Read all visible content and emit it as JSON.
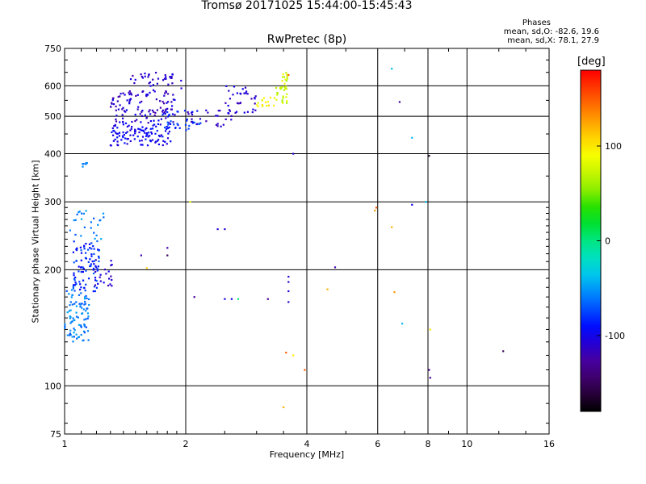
{
  "title": "Tromsø 20171025 15:44:00-15:45:43",
  "subtitle": "RwPretec (8p)",
  "phase_info": {
    "heading": "Phases",
    "line_o": "mean, sd,O: -82.6, 19.6",
    "line_x": "mean, sd,X:  78.1, 27.9"
  },
  "colorbar": {
    "unit": "[deg]",
    "ticks": [
      100,
      0,
      -100
    ],
    "range": [
      -180,
      180
    ]
  },
  "chart_data": {
    "type": "scatter",
    "xlabel": "Frequency [MHz]",
    "ylabel": "Stationary phase Virtual Height [km]",
    "xscale": "log",
    "yscale": "log",
    "xlim": [
      1,
      16
    ],
    "ylim": [
      75,
      750
    ],
    "xticks": [
      1,
      2,
      4,
      6,
      8,
      10,
      16
    ],
    "yticks": [
      75,
      100,
      200,
      300,
      400,
      500,
      600,
      750
    ],
    "grid": true,
    "colorbar_label": "[deg]",
    "point_clusters": [
      {
        "x_range": [
          1.0,
          1.15
        ],
        "y_range": [
          130,
          180
        ],
        "n": 90,
        "phase_range": [
          -75,
          -45
        ]
      },
      {
        "x_range": [
          1.05,
          1.22
        ],
        "y_range": [
          175,
          240
        ],
        "n": 90,
        "phase_range": [
          -100,
          -65
        ]
      },
      {
        "x_range": [
          1.03,
          1.25
        ],
        "y_range": [
          240,
          285
        ],
        "n": 25,
        "phase_range": [
          -75,
          -45
        ]
      },
      {
        "x_range": [
          1.18,
          1.32
        ],
        "y_range": [
          180,
          215
        ],
        "n": 20,
        "phase_range": [
          -125,
          -100
        ]
      },
      {
        "x_range": [
          1.1,
          1.14
        ],
        "y_range": [
          370,
          380
        ],
        "n": 6,
        "phase_range": [
          -65,
          -55
        ]
      },
      {
        "x_range": [
          1.3,
          1.85
        ],
        "y_range": [
          420,
          480
        ],
        "n": 110,
        "phase_range": [
          -110,
          -85
        ]
      },
      {
        "x_range": [
          1.3,
          1.9
        ],
        "y_range": [
          480,
          580
        ],
        "n": 110,
        "phase_range": [
          -125,
          -95
        ]
      },
      {
        "x_range": [
          1.45,
          1.95
        ],
        "y_range": [
          580,
          650
        ],
        "n": 40,
        "phase_range": [
          -120,
          -100
        ]
      },
      {
        "x_range": [
          1.75,
          2.2
        ],
        "y_range": [
          460,
          520
        ],
        "n": 35,
        "phase_range": [
          -90,
          -70
        ]
      },
      {
        "x_range": [
          2.0,
          2.6
        ],
        "y_range": [
          470,
          520
        ],
        "n": 25,
        "phase_range": [
          -120,
          -105
        ]
      },
      {
        "x_range": [
          2.5,
          3.0
        ],
        "y_range": [
          510,
          600
        ],
        "n": 35,
        "phase_range": [
          -120,
          -95
        ]
      },
      {
        "x_range": [
          3.0,
          3.35
        ],
        "y_range": [
          525,
          560
        ],
        "n": 15,
        "phase_range": [
          80,
          110
        ]
      },
      {
        "x_range": [
          3.35,
          3.6
        ],
        "y_range": [
          540,
          650
        ],
        "n": 35,
        "phase_range": [
          55,
          95
        ]
      }
    ],
    "points": [
      {
        "x": 2.05,
        "y": 300,
        "phase": 90
      },
      {
        "x": 2.1,
        "y": 170,
        "phase": -130
      },
      {
        "x": 2.4,
        "y": 255,
        "phase": -110
      },
      {
        "x": 2.5,
        "y": 255,
        "phase": -110
      },
      {
        "x": 2.5,
        "y": 168,
        "phase": -100
      },
      {
        "x": 2.6,
        "y": 168,
        "phase": -100
      },
      {
        "x": 2.7,
        "y": 168,
        "phase": 0
      },
      {
        "x": 1.8,
        "y": 228,
        "phase": -120
      },
      {
        "x": 1.8,
        "y": 218,
        "phase": -150
      },
      {
        "x": 1.55,
        "y": 218,
        "phase": -120
      },
      {
        "x": 3.2,
        "y": 168,
        "phase": -130
      },
      {
        "x": 3.6,
        "y": 192,
        "phase": -110
      },
      {
        "x": 3.6,
        "y": 186,
        "phase": -110
      },
      {
        "x": 3.6,
        "y": 176,
        "phase": -110
      },
      {
        "x": 3.6,
        "y": 165,
        "phase": -110
      },
      {
        "x": 3.7,
        "y": 400,
        "phase": -110
      },
      {
        "x": 3.5,
        "y": 88,
        "phase": 120
      },
      {
        "x": 3.55,
        "y": 122,
        "phase": 150
      },
      {
        "x": 3.7,
        "y": 120,
        "phase": 100
      },
      {
        "x": 3.95,
        "y": 110,
        "phase": 150
      },
      {
        "x": 4.5,
        "y": 178,
        "phase": 120
      },
      {
        "x": 4.7,
        "y": 203,
        "phase": -120
      },
      {
        "x": 5.9,
        "y": 285,
        "phase": 130
      },
      {
        "x": 5.95,
        "y": 290,
        "phase": 150
      },
      {
        "x": 6.5,
        "y": 665,
        "phase": -40
      },
      {
        "x": 6.5,
        "y": 258,
        "phase": 120
      },
      {
        "x": 6.6,
        "y": 175,
        "phase": 130
      },
      {
        "x": 6.8,
        "y": 545,
        "phase": -130
      },
      {
        "x": 6.9,
        "y": 145,
        "phase": -40
      },
      {
        "x": 7.3,
        "y": 440,
        "phase": -40
      },
      {
        "x": 7.3,
        "y": 295,
        "phase": -100
      },
      {
        "x": 7.9,
        "y": 300,
        "phase": -40
      },
      {
        "x": 8.05,
        "y": 395,
        "phase": -170
      },
      {
        "x": 8.1,
        "y": 140,
        "phase": 100
      },
      {
        "x": 8.05,
        "y": 110,
        "phase": -130
      },
      {
        "x": 8.1,
        "y": 105,
        "phase": -130
      },
      {
        "x": 12.3,
        "y": 123,
        "phase": -150
      },
      {
        "x": 1.6,
        "y": 202,
        "phase": 110
      },
      {
        "x": 3.6,
        "y": 640,
        "phase": 150
      }
    ]
  }
}
